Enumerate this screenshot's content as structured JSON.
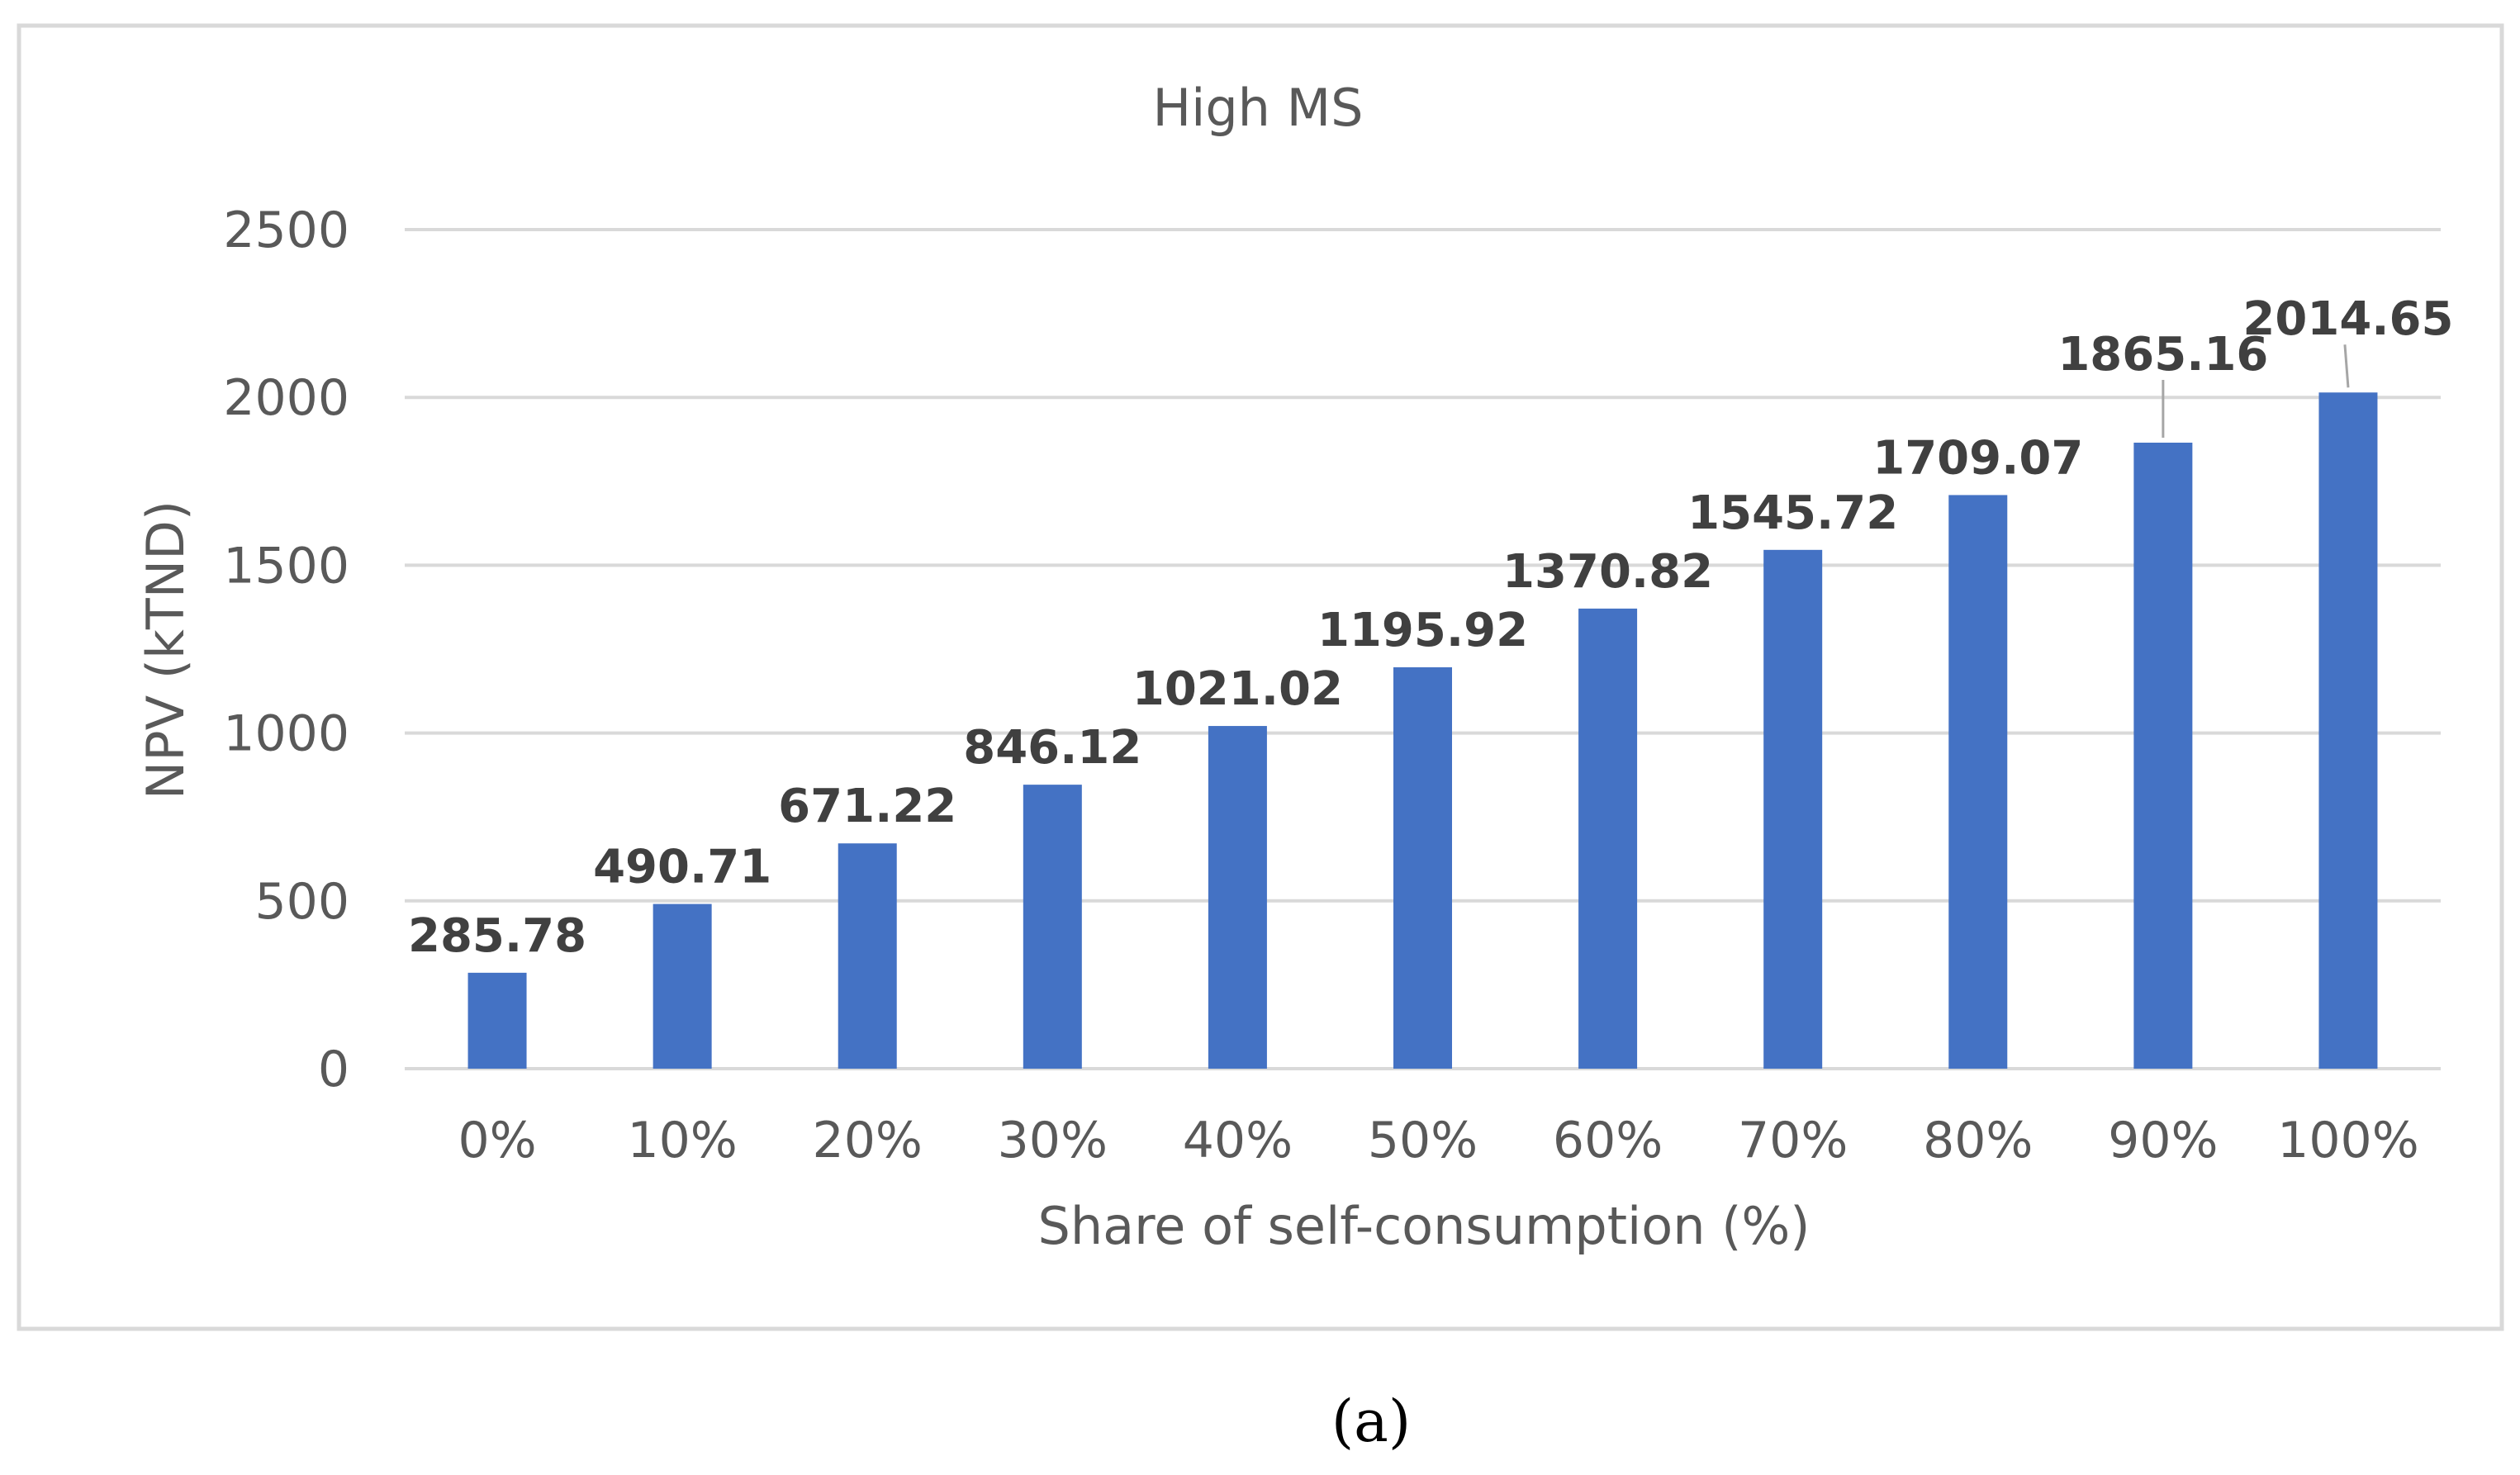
{
  "chart_data": {
    "type": "bar",
    "title": "High MS",
    "xlabel": "Share of self-consumption (%)",
    "ylabel": "NPV (kTND)",
    "categories": [
      "0%",
      "10%",
      "20%",
      "30%",
      "40%",
      "50%",
      "60%",
      "70%",
      "80%",
      "90%",
      "100%"
    ],
    "values": [
      285.78,
      490.71,
      671.22,
      846.12,
      1021.02,
      1195.92,
      1370.82,
      1545.72,
      1709.07,
      1865.16,
      2014.65
    ],
    "data_labels": [
      "285.78",
      "490.71",
      "671.22",
      "846.12",
      "1021.02",
      "1195.92",
      "1370.82",
      "1545.72",
      "1709.07",
      "1865.16",
      "2014.65"
    ],
    "ylim": [
      0,
      2500
    ],
    "yticks": [
      0,
      500,
      1000,
      1500,
      2000,
      2500
    ],
    "grid": true,
    "legend": "none",
    "bar_color": "#4472C4",
    "grid_color": "#D9D9D9",
    "border_color": "#D9D9D9"
  },
  "caption": "(a)"
}
